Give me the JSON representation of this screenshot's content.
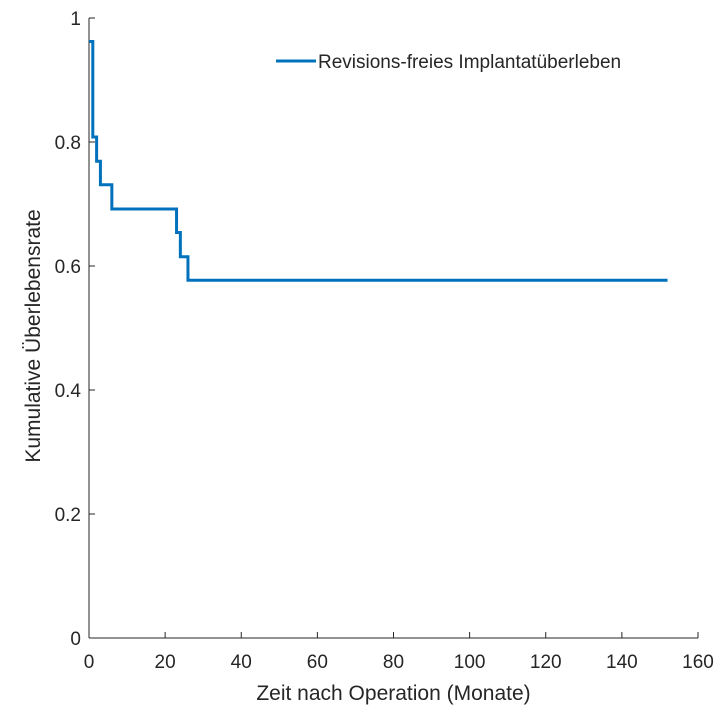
{
  "chart_data": {
    "type": "line",
    "subtype": "step (Kaplan-Meier survival curve)",
    "title": "",
    "xlabel": "Zeit nach Operation (Monate)",
    "ylabel": "Kumulative Überlebensrate",
    "xlim": [
      0,
      160
    ],
    "ylim": [
      0,
      1
    ],
    "xticks": [
      0,
      20,
      40,
      60,
      80,
      100,
      120,
      140,
      160
    ],
    "xtick_labels": [
      "0",
      "20",
      "40",
      "60",
      "80",
      "100",
      "120",
      "140",
      "160"
    ],
    "yticks": [
      0,
      0.2,
      0.4,
      0.6,
      0.8,
      1
    ],
    "ytick_labels": [
      "0",
      "0.2",
      "0.4",
      "0.6",
      "0.8",
      "1"
    ],
    "grid": false,
    "legend_position": "top-right",
    "colors": {
      "series": "#0072BD",
      "axis": "#262626"
    },
    "series": [
      {
        "name": "Revisions-freies Implantatüberleben",
        "x": [
          0,
          1,
          2,
          3,
          6,
          23,
          24,
          26,
          28,
          152
        ],
        "y": [
          0.962,
          0.808,
          0.769,
          0.731,
          0.692,
          0.654,
          0.615,
          0.577,
          0.577,
          0.577
        ]
      }
    ]
  }
}
